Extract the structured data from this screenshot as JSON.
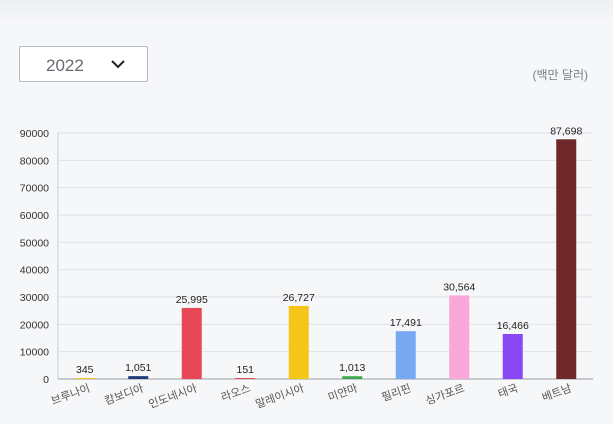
{
  "year_select": {
    "value": "2022",
    "icon": "chevron-down-icon"
  },
  "unit": "(백만 달러)",
  "chart_data": {
    "type": "bar",
    "title": "",
    "xlabel": "",
    "ylabel": "",
    "categories": [
      "브루나이",
      "캄보디아",
      "인도네시아",
      "라오스",
      "말레이시아",
      "미얀마",
      "필리핀",
      "싱가포르",
      "태국",
      "베트남"
    ],
    "values": [
      345,
      1051,
      25995,
      151,
      26727,
      1013,
      17491,
      30564,
      16466,
      87698
    ],
    "value_labels": [
      "345",
      "1,051",
      "25,995",
      "151",
      "26,727",
      "1,013",
      "17,491",
      "30,564",
      "16,466",
      "87,698"
    ],
    "colors": [
      "#f0c419",
      "#1f3d7a",
      "#e64858",
      "#e64858",
      "#f5c518",
      "#3aa84a",
      "#78a8f2",
      "#f9a8d9",
      "#8a47f5",
      "#70282b"
    ],
    "ylim": [
      0,
      90000
    ],
    "yticks": [
      0,
      10000,
      20000,
      30000,
      40000,
      50000,
      60000,
      70000,
      80000,
      90000
    ],
    "grid": true,
    "legend": "none"
  }
}
